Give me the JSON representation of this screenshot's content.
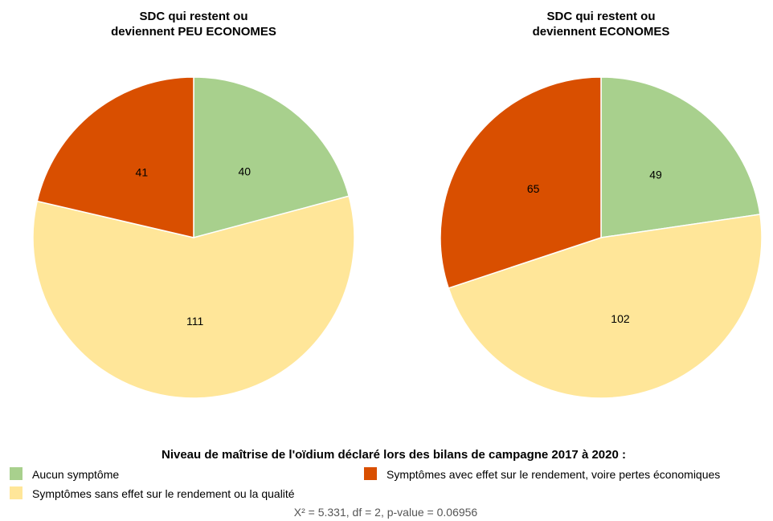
{
  "legend": {
    "title": "Niveau de maîtrise de l'oïdium déclaré lors des bilans de campagne 2017 à 2020 :",
    "items": [
      {
        "label": "Aucun symptôme",
        "color": "#a8d08d"
      },
      {
        "label": "Symptômes avec effet sur le rendement, voire pertes économiques",
        "color": "#d94f00"
      },
      {
        "label": "Symptômes sans effet sur le rendement ou la qualité",
        "color": "#ffe699"
      }
    ]
  },
  "stats_caption": "X² = 5.331, df = 2, p-value = 0.06956",
  "chart_data": [
    {
      "type": "pie",
      "title": [
        "SDC qui restent ou",
        "deviennent PEU ECONOMES"
      ],
      "categories": [
        "Aucun symptôme",
        "Symptômes sans effet sur le rendement ou la qualité",
        "Symptômes avec effet sur le rendement, voire pertes économiques"
      ],
      "values": [
        40,
        111,
        41
      ],
      "colors": [
        "#a8d08d",
        "#ffe699",
        "#d94f00"
      ],
      "data_labels": [
        "40",
        "111",
        "41"
      ],
      "start": "top",
      "direction": "clockwise"
    },
    {
      "type": "pie",
      "title": [
        "SDC qui restent ou",
        "deviennent ECONOMES"
      ],
      "categories": [
        "Aucun symptôme",
        "Symptômes sans effet sur le rendement ou la qualité",
        "Symptômes avec effet sur le rendement, voire pertes économiques"
      ],
      "values": [
        49,
        102,
        65
      ],
      "colors": [
        "#a8d08d",
        "#ffe699",
        "#d94f00"
      ],
      "data_labels": [
        "49",
        "102",
        "65"
      ],
      "start": "top",
      "direction": "clockwise"
    }
  ]
}
